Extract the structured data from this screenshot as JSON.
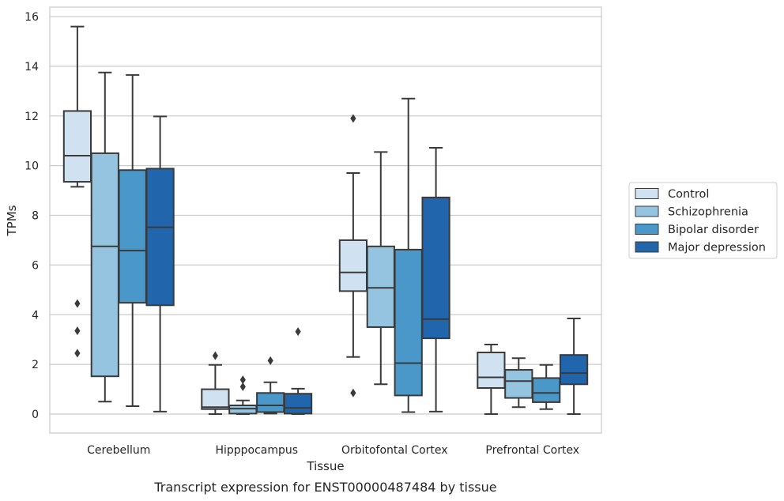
{
  "chart_data": {
    "type": "box",
    "title": "",
    "caption": "Transcript expression for ENST00000487484 by tissue",
    "xlabel": "Tissue",
    "ylabel": "TPMs",
    "ylim": [
      -0.75,
      16.4
    ],
    "yticks": [
      0,
      2,
      4,
      6,
      8,
      10,
      12,
      14,
      16
    ],
    "grid": "horizontal",
    "legend_position": "right",
    "categories": [
      "Cerebellum",
      "Hipppocampus",
      "Orbitofontal Cortex",
      "Prefrontal Cortex"
    ],
    "series": [
      {
        "name": "Control",
        "color": "#d0e1f2",
        "boxes": [
          {
            "whislo": 9.15,
            "q1": 9.35,
            "med": 10.4,
            "q3": 12.2,
            "whishi": 15.6,
            "fliers": [
              4.45,
              3.35,
              2.45
            ]
          },
          {
            "whislo": 0.0,
            "q1": 0.2,
            "med": 0.28,
            "q3": 1.0,
            "whishi": 1.98,
            "fliers": [
              2.35
            ]
          },
          {
            "whislo": 2.3,
            "q1": 4.95,
            "med": 5.7,
            "q3": 7.0,
            "whishi": 9.7,
            "fliers": [
              11.9,
              0.85
            ]
          },
          {
            "whislo": 0.0,
            "q1": 1.05,
            "med": 1.48,
            "q3": 2.48,
            "whishi": 2.8,
            "fliers": []
          }
        ]
      },
      {
        "name": "Schizophrenia",
        "color": "#94c4df",
        "boxes": [
          {
            "whislo": 0.5,
            "q1": 1.52,
            "med": 6.75,
            "q3": 10.5,
            "whishi": 13.75,
            "fliers": []
          },
          {
            "whislo": 0.0,
            "q1": 0.02,
            "med": 0.22,
            "q3": 0.35,
            "whishi": 0.55,
            "fliers": [
              1.1,
              1.38
            ]
          },
          {
            "whislo": 1.2,
            "q1": 3.5,
            "med": 5.08,
            "q3": 6.75,
            "whishi": 10.55,
            "fliers": []
          },
          {
            "whislo": 0.28,
            "q1": 0.65,
            "med": 1.33,
            "q3": 1.78,
            "whishi": 2.25,
            "fliers": []
          }
        ]
      },
      {
        "name": "Bipolar disorder",
        "color": "#4a98c9",
        "boxes": [
          {
            "whislo": 0.32,
            "q1": 4.48,
            "med": 6.58,
            "q3": 9.82,
            "whishi": 13.65,
            "fliers": []
          },
          {
            "whislo": 0.02,
            "q1": 0.08,
            "med": 0.35,
            "q3": 0.85,
            "whishi": 1.28,
            "fliers": [
              2.15
            ]
          },
          {
            "whislo": 0.08,
            "q1": 0.75,
            "med": 2.05,
            "q3": 6.62,
            "whishi": 12.7,
            "fliers": []
          },
          {
            "whislo": 0.2,
            "q1": 0.48,
            "med": 0.85,
            "q3": 1.45,
            "whishi": 1.98,
            "fliers": []
          }
        ]
      },
      {
        "name": "Major depression",
        "color": "#2166ac",
        "boxes": [
          {
            "whislo": 0.1,
            "q1": 4.38,
            "med": 7.52,
            "q3": 9.88,
            "whishi": 11.98,
            "fliers": []
          },
          {
            "whislo": 0.0,
            "q1": 0.02,
            "med": 0.25,
            "q3": 0.82,
            "whishi": 1.02,
            "fliers": [
              3.32
            ]
          },
          {
            "whislo": 0.1,
            "q1": 3.05,
            "med": 3.82,
            "q3": 8.72,
            "whishi": 10.72,
            "fliers": []
          },
          {
            "whislo": 0.0,
            "q1": 1.2,
            "med": 1.65,
            "q3": 2.38,
            "whishi": 3.85,
            "fliers": []
          }
        ]
      }
    ]
  }
}
